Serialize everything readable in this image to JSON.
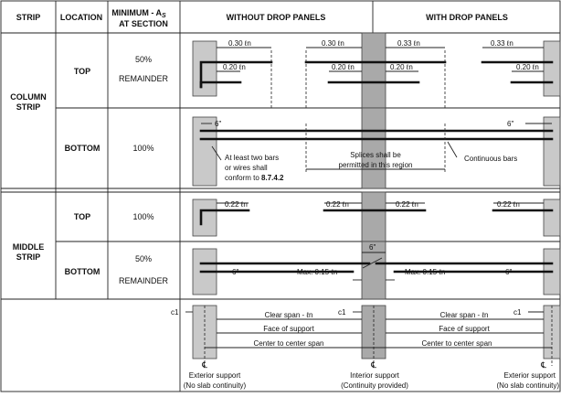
{
  "headers": {
    "strip": "STRIP",
    "location": "LOCATION",
    "minimum": "MINIMUM - A",
    "minimum_sub": "S",
    "at_section": "AT SECTION",
    "without": "WITHOUT DROP PANELS",
    "with": "WITH DROP PANELS"
  },
  "rows": {
    "column_strip_1": "COLUMN",
    "column_strip_2": "STRIP",
    "middle_strip_1": "MIDDLE",
    "middle_strip_2": "STRIP",
    "top": "TOP",
    "bottom": "BOTTOM",
    "pct_50": "50%",
    "remainder": "REMAINDER",
    "pct_100": "100%"
  },
  "dims": {
    "d030": "0.30 ℓn",
    "d020": "0.20 ℓn",
    "d033": "0.33 ℓn",
    "d022": "0.22 ℓn",
    "d015": "Max. 0.15 ℓn",
    "six": "6\""
  },
  "annotations": {
    "two_bars_1": "At least two bars",
    "two_bars_2": "or wires shall",
    "two_bars_3": "conform to",
    "two_bars_ref": "8.7.4.2",
    "splices_1": "Splices shall be",
    "splices_2": "permitted in this region",
    "continuous": "Continuous bars",
    "clear_span": "Clear span - ℓn",
    "face": "Face of support",
    "center": "Center to center span",
    "c1": "c1",
    "cl": "℄",
    "ext_support_1": "Exterior support",
    "ext_support_2": "(No slab continuity)",
    "int_support_1": "Interior support",
    "int_support_2": "(Continuity provided)"
  }
}
